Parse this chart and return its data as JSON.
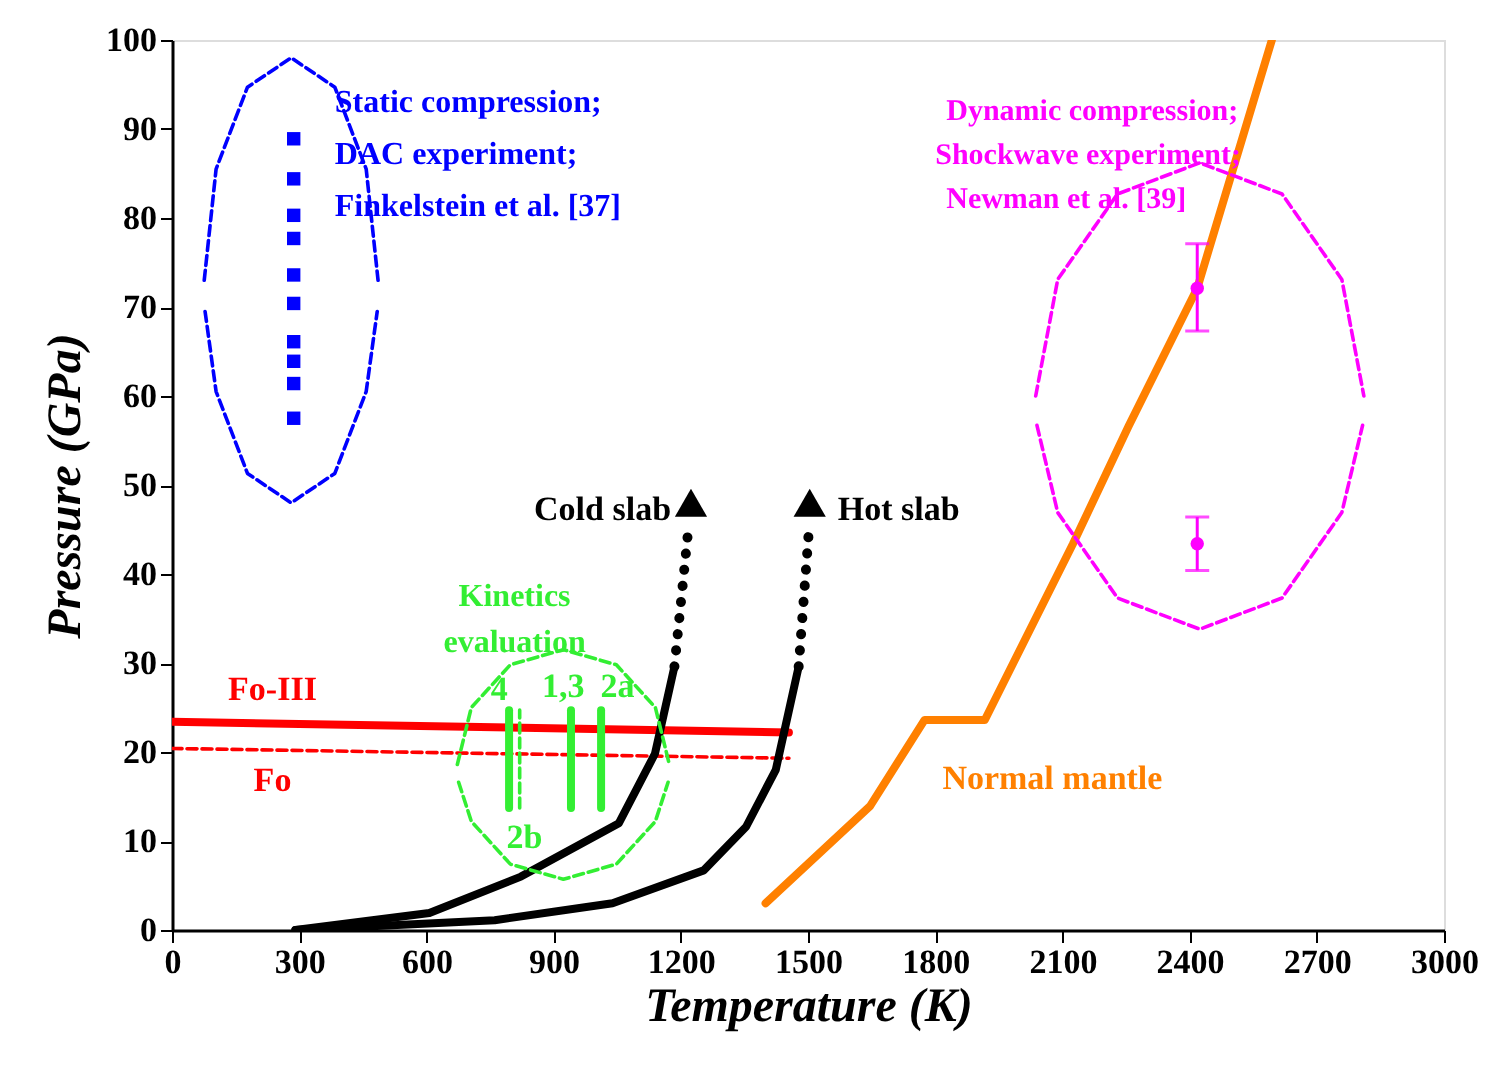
{
  "chart_data": {
    "type": "line",
    "xlabel": "Temperature (K)",
    "ylabel": "Pressure (GPa)",
    "xlim": [
      0,
      3000
    ],
    "ylim": [
      0,
      100
    ],
    "xticks": [
      0,
      300,
      600,
      900,
      1200,
      1500,
      1800,
      2100,
      2400,
      2700,
      3000
    ],
    "yticks": [
      0,
      10,
      20,
      30,
      40,
      50,
      60,
      70,
      80,
      90,
      100
    ],
    "grid": false,
    "series": [
      {
        "name": "Fo-III",
        "color": "#ff0000",
        "line_style": "solid",
        "x": [
          0,
          1455
        ],
        "values": [
          23.4,
          22.2
        ]
      },
      {
        "name": "Fo",
        "color": "#ff0000",
        "line_style": "dashed",
        "x": [
          0,
          1455
        ],
        "values": [
          20.4,
          19.3
        ]
      },
      {
        "color": "#000000",
        "line_style": "solid",
        "x": [
          291,
          607,
          823,
          1054,
          1139,
          1185
        ],
        "values": [
          0,
          1.9,
          6.0,
          12,
          19.8,
          29.6
        ]
      },
      {
        "name": "Cold slab",
        "color": "#000000",
        "line_style": "dotted",
        "x": [
          1185,
          1216
        ],
        "values": [
          29.6,
          44.2
        ]
      },
      {
        "type": "scatter",
        "color": "#000000",
        "marker": "triangle",
        "x": [
          1224,
          1504
        ],
        "values": [
          48,
          48
        ]
      },
      {
        "color": "#000000",
        "line_style": "solid",
        "x": [
          291,
          761,
          1039,
          1254,
          1354,
          1424,
          1478
        ],
        "values": [
          0,
          1.1,
          3.0,
          6.7,
          11.6,
          18,
          29.6
        ]
      },
      {
        "name": "Hot slab",
        "color": "#000000",
        "line_style": "dotted",
        "x": [
          1478,
          1501
        ],
        "values": [
          29.6,
          44.2
        ]
      },
      {
        "name": "Normal mantle",
        "color": "#ff8000",
        "line_style": "solid",
        "x": [
          1400,
          1646,
          1775,
          1917,
          2125,
          2256,
          2418,
          2594
        ],
        "values": [
          3,
          13.9,
          23.6,
          23.6,
          43.4,
          56.6,
          72.1,
          100
        ]
      },
      {
        "name": "4",
        "color": "#33ee33",
        "line_style": "solid",
        "x": [
          795,
          795
        ],
        "values": [
          13.7,
          24.7
        ]
      },
      {
        "name": "2b",
        "color": "#33ee33",
        "line_style": "dashed",
        "x": [
          820,
          820
        ],
        "values": [
          13.7,
          24.7
        ]
      },
      {
        "name": "1,3",
        "color": "#33ee33",
        "line_style": "solid",
        "x": [
          941,
          941
        ],
        "values": [
          13.7,
          24.7
        ]
      },
      {
        "name": "2a",
        "color": "#33ee33",
        "line_style": "solid",
        "x": [
          1012,
          1012
        ],
        "values": [
          13.7,
          24.7
        ]
      },
      {
        "color": "#33ee33",
        "line_style": "dashed",
        "x": [
          673,
          706,
          798,
          923,
          1048,
          1140,
          1173
        ],
        "values": [
          18.6,
          25,
          29.8,
          31.5,
          29.8,
          25,
          18.6
        ]
      },
      {
        "color": "#33ee33",
        "line_style": "dashed",
        "x": [
          676,
          706,
          798,
          923,
          1048,
          1140,
          1170
        ],
        "values": [
          16.6,
          12.2,
          7.4,
          5.7,
          7.4,
          12.2,
          16.6
        ]
      },
      {
        "color": "#0000ff",
        "line_style": "dashed",
        "x": [
          76,
          104,
          178,
          281,
          384,
          458,
          486
        ],
        "values": [
          73,
          85.5,
          94.7,
          98,
          94.7,
          85.5,
          73
        ]
      },
      {
        "color": "#0000ff",
        "line_style": "dashed",
        "x": [
          78,
          104,
          178,
          281,
          384,
          458,
          484
        ],
        "values": [
          69.5,
          60.5,
          51.3,
          48,
          51.3,
          60.5,
          69.5
        ]
      },
      {
        "color": "#ff00ff",
        "line_style": "dashed",
        "x": [
          2037,
          2089,
          2230,
          2424,
          2618,
          2759,
          2811
        ],
        "values": [
          60,
          73.1,
          82.7,
          86.2,
          82.7,
          73.1,
          60
        ]
      },
      {
        "color": "#ff00ff",
        "line_style": "dashed",
        "x": [
          2040,
          2089,
          2230,
          2424,
          2618,
          2759,
          2808
        ],
        "values": [
          56.7,
          46.9,
          37.3,
          33.8,
          37.3,
          46.9,
          56.7
        ]
      },
      {
        "type": "scatter",
        "color": "#0000ff",
        "marker": "square",
        "x": [
          287,
          287,
          287,
          287,
          287,
          287,
          287,
          287,
          287,
          287
        ],
        "values": [
          88.9,
          84.4,
          80.3,
          77.7,
          73.6,
          70.4,
          66.1,
          63.9,
          61.4,
          57.5
        ]
      },
      {
        "type": "scatter",
        "color": "#ff00ff",
        "marker": "circle",
        "x": [
          2418,
          2418
        ],
        "values": [
          72.1,
          43.4
        ],
        "errors": [
          [
            67.3,
            77.1
          ],
          [
            40.4,
            46.4
          ]
        ]
      }
    ],
    "annotations": [
      "Static compression;",
      "DAC experiment;",
      "Finkelstein et al. [37]",
      "Dynamic compression;",
      "Shockwave experiment;",
      "Newman et al. [39]",
      "Kinetics",
      "evaluation"
    ]
  }
}
